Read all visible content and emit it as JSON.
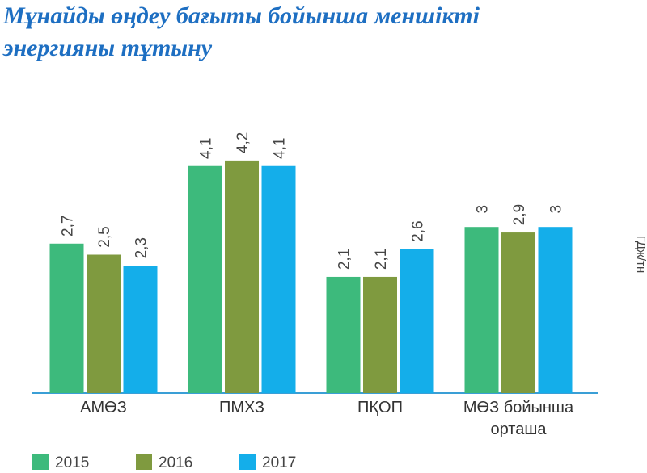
{
  "chart_data": {
    "type": "bar",
    "title": [
      "Мұнайды өңдеу бағыты бойынша меншікті",
      "энергияны тұтыну"
    ],
    "y_label": "ГДж/тн",
    "categories": [
      "АМӨЗ",
      "ПМХЗ",
      "ПҚОП",
      "МӨЗ бойынша орташа"
    ],
    "series": [
      {
        "name": "2015",
        "color": "#3dba7c",
        "values": [
          2.7,
          4.1,
          2.1,
          3
        ],
        "value_labels": [
          "2,7",
          "4,1",
          "2,1",
          "3"
        ]
      },
      {
        "name": "2016",
        "color": "#7f9a3f",
        "values": [
          2.5,
          4.2,
          2.1,
          2.9
        ],
        "value_labels": [
          "2,5",
          "4,2",
          "2,1",
          "2,9"
        ]
      },
      {
        "name": "2017",
        "color": "#14aeea",
        "values": [
          2.3,
          4.1,
          2.6,
          3
        ],
        "value_labels": [
          "2,3",
          "4,1",
          "2,6",
          "3"
        ]
      }
    ]
  }
}
